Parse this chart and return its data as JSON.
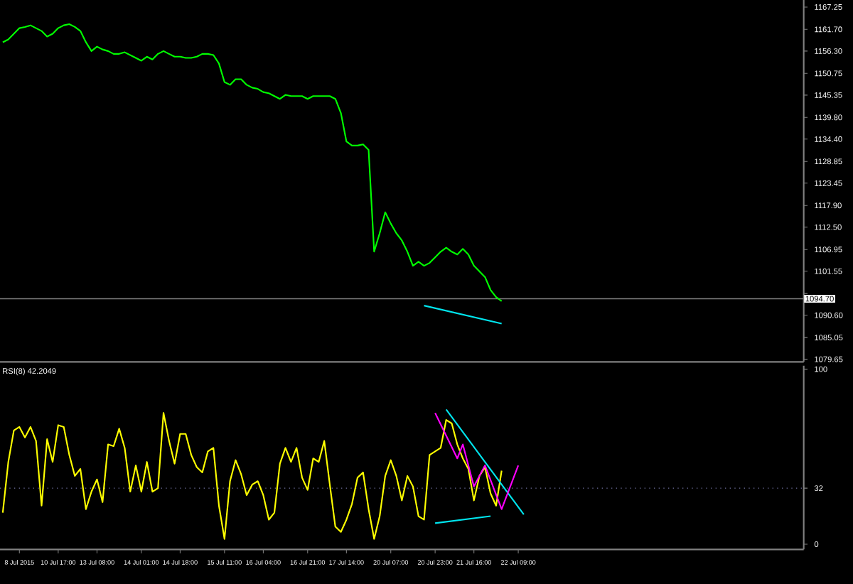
{
  "chart_data": [
    {
      "type": "line",
      "categories": [
        null,
        null,
        null,
        null,
        null,
        null,
        null,
        null,
        null,
        null,
        null,
        null,
        null,
        null,
        null,
        null,
        null,
        null,
        null,
        null,
        null,
        null,
        null,
        null,
        null,
        null,
        null,
        null,
        null,
        null,
        null,
        null,
        null,
        null,
        null,
        null,
        null,
        null,
        null,
        null,
        null,
        null,
        null,
        null,
        null,
        null,
        null,
        null,
        null,
        null,
        null,
        null,
        null,
        null,
        null,
        null,
        null,
        null,
        null,
        null,
        null,
        null,
        null,
        null,
        null,
        null,
        null,
        null,
        null,
        null,
        null,
        null,
        null,
        null,
        null,
        null,
        null,
        null,
        null,
        null,
        null,
        null,
        null,
        null,
        null,
        null,
        null,
        null,
        null,
        null,
        null,
        null,
        null,
        null,
        null,
        null,
        null,
        null,
        null,
        null,
        null,
        null,
        null,
        null,
        null,
        null,
        null,
        null,
        null,
        null,
        null,
        null,
        null,
        null,
        null,
        null,
        null,
        null,
        null,
        null,
        null,
        null,
        null,
        null,
        null,
        null,
        null,
        null,
        null,
        null,
        null,
        null,
        null,
        null,
        null,
        null,
        null,
        null,
        null,
        null,
        null,
        null,
        null,
        null,
        null
      ],
      "series": [
        {
          "color": "#00ff00",
          "values": [
            1158.5,
            1159.2,
            1160.6,
            1162.0,
            1162.3,
            1162.7,
            1162.0,
            1161.3,
            1159.9,
            1160.6,
            1162.0,
            1162.7,
            1163.0,
            1162.3,
            1161.3,
            1158.5,
            1156.3,
            1157.4,
            1156.7,
            1156.3,
            1155.6,
            1155.6,
            1156.0,
            1155.3,
            1154.6,
            1153.9,
            1154.9,
            1154.2,
            1155.6,
            1156.3,
            1155.6,
            1154.9,
            1154.9,
            1154.6,
            1154.6,
            1154.9,
            1155.6,
            1155.6,
            1155.3,
            1153.2,
            1148.6,
            1147.9,
            1149.3,
            1149.3,
            1147.9,
            1147.2,
            1146.9,
            1146.1,
            1145.8,
            1145.1,
            1144.4,
            1145.4,
            1145.1,
            1145.1,
            1145.1,
            1144.4,
            1145.1,
            1145.1,
            1145.1,
            1145.1,
            1144.4,
            1140.9,
            1133.8,
            1132.8,
            1132.8,
            1133.1,
            1131.7,
            1106.4,
            1111.0,
            1116.2,
            1113.4,
            1111.0,
            1109.2,
            1106.4,
            1102.9,
            1103.9,
            1102.9,
            1103.6,
            1105.0,
            1106.4,
            1107.4,
            1106.4,
            1105.7,
            1107.1,
            1105.7,
            1102.9,
            1101.5,
            1100.1,
            1096.9,
            1095.1,
            1094.1,
            null,
            null,
            null,
            null,
            null,
            null,
            null,
            null,
            null,
            null,
            null,
            null,
            null,
            null,
            null,
            null,
            null,
            null,
            null,
            null,
            null,
            null,
            null,
            null,
            null,
            null,
            null,
            null,
            null,
            null,
            null,
            null,
            null,
            null,
            null,
            null,
            null,
            null,
            null,
            null,
            null,
            null,
            null,
            null,
            null,
            null,
            null,
            null,
            null,
            null,
            null,
            null,
            null,
            null
          ]
        },
        {
          "color": "#00e5ee",
          "values": [
            null,
            null,
            null,
            null,
            null,
            null,
            null,
            null,
            null,
            null,
            null,
            null,
            null,
            null,
            null,
            null,
            null,
            null,
            null,
            null,
            null,
            null,
            null,
            null,
            null,
            null,
            null,
            null,
            null,
            null,
            null,
            null,
            null,
            null,
            null,
            null,
            null,
            null,
            null,
            null,
            null,
            null,
            null,
            null,
            null,
            null,
            null,
            null,
            null,
            null,
            null,
            null,
            null,
            null,
            null,
            null,
            null,
            null,
            null,
            null,
            null,
            null,
            null,
            null,
            null,
            null,
            null,
            null,
            null,
            null,
            null,
            null,
            null,
            null,
            null,
            null,
            1093.0,
            null,
            null,
            null,
            null,
            null,
            null,
            null,
            null,
            null,
            null,
            null,
            null,
            null,
            1088.5,
            null,
            null,
            null,
            null,
            null,
            null,
            null,
            null,
            null,
            null,
            null,
            null,
            null,
            null,
            null,
            null,
            null,
            null,
            null,
            null,
            null,
            null,
            null,
            null,
            null,
            null,
            null,
            null,
            null,
            null,
            null,
            null,
            null,
            null,
            null,
            null,
            null,
            null,
            null,
            null,
            null,
            null,
            null,
            null,
            null,
            null,
            null,
            null,
            null,
            null,
            null,
            null,
            null,
            null
          ]
        }
      ],
      "ylim": [
        1079,
        1169
      ],
      "yticks": [
        1167.25,
        {
          "value": 1161.7,
          "label": "1161.70"
        },
        {
          "value": 1156.3,
          "label": "1156.30"
        },
        1150.75,
        1145.35,
        {
          "value": 1139.8,
          "label": "1139.80"
        },
        {
          "value": 1134.4,
          "label": "1134.40"
        },
        1128.85,
        1123.45,
        {
          "value": 1117.9,
          "label": "1117.90"
        },
        {
          "value": 1112.5,
          "label": "1112.50"
        },
        1106.95,
        1101.55,
        {
          "value": 1096.0,
          "label": null
        },
        {
          "value": 1090.6,
          "label": "1090.60"
        },
        1085.05,
        1079.65
      ],
      "tick_labels": "y",
      "ref_lines": [
        {
          "axis": "y",
          "value": 1094.7,
          "label": "1094.70",
          "color": "#808080"
        }
      ]
    },
    {
      "type": "line",
      "title": "RSI(8) 42.2049",
      "categories": [
        null,
        null,
        null,
        "8 Jul 2015",
        null,
        null,
        null,
        null,
        null,
        null,
        "10 Jul 17:00",
        null,
        null,
        null,
        null,
        null,
        null,
        "13 Jul 08:00",
        null,
        null,
        null,
        null,
        null,
        null,
        null,
        "14 Jul 01:00",
        null,
        null,
        null,
        null,
        null,
        null,
        "14 Jul 18:00",
        null,
        null,
        null,
        null,
        null,
        null,
        null,
        "15 Jul 11:00",
        null,
        null,
        null,
        null,
        null,
        null,
        "16 Jul 04:00",
        null,
        null,
        null,
        null,
        null,
        null,
        null,
        "16 Jul 21:00",
        null,
        null,
        null,
        null,
        null,
        null,
        "17 Jul 14:00",
        null,
        null,
        null,
        null,
        null,
        null,
        null,
        "20 Jul 07:00",
        null,
        null,
        null,
        null,
        null,
        null,
        null,
        "20 Jul 23:00",
        null,
        null,
        null,
        null,
        null,
        null,
        "21 Jul 16:00",
        null,
        null,
        null,
        null,
        null,
        null,
        null,
        "22 Jul 09:00",
        null,
        null,
        null,
        null,
        null,
        null,
        null,
        null,
        null,
        null,
        null,
        null,
        null,
        null,
        null,
        null,
        null,
        null,
        null,
        null,
        null,
        null,
        null,
        null,
        null,
        null,
        null,
        null,
        null,
        null,
        null,
        null,
        null,
        null,
        null,
        null,
        null,
        null,
        null,
        null,
        null,
        null,
        null,
        null,
        null,
        null,
        null,
        null,
        null,
        null,
        null
      ],
      "series": [
        {
          "color": "#ffff00",
          "values": [
            18,
            47,
            65,
            67,
            61,
            67,
            59,
            22,
            60,
            47,
            68,
            67,
            51,
            39,
            43,
            20,
            30,
            37,
            24,
            57,
            56,
            66,
            55,
            30,
            45,
            30,
            47,
            30,
            32,
            75,
            59,
            46,
            63,
            63,
            51,
            44,
            41,
            53,
            55,
            22,
            3,
            36,
            48,
            40,
            28,
            34,
            36,
            28,
            14,
            18,
            46,
            55,
            47,
            55,
            38,
            31,
            49,
            47,
            59,
            34,
            10,
            7,
            14,
            23,
            38,
            41,
            20,
            3,
            16,
            39,
            48,
            39,
            25,
            39,
            33,
            16,
            14,
            51,
            53,
            55,
            71,
            69,
            57,
            49,
            43,
            25,
            39,
            44,
            29,
            22,
            42,
            null,
            null,
            null,
            null,
            null,
            null,
            null,
            null,
            null,
            null,
            null,
            null,
            null,
            null,
            null,
            null,
            null,
            null,
            null,
            null,
            null,
            null,
            null,
            null,
            null,
            null,
            null,
            null,
            null,
            null,
            null,
            null,
            null,
            null,
            null,
            null,
            null,
            null,
            null,
            null,
            null,
            null,
            null,
            null,
            null,
            null,
            null,
            null,
            null,
            null,
            null,
            null,
            null,
            null
          ]
        },
        {
          "color": "#00e5ee",
          "values": [
            null,
            null,
            null,
            null,
            null,
            null,
            null,
            null,
            null,
            null,
            null,
            null,
            null,
            null,
            null,
            null,
            null,
            null,
            null,
            null,
            null,
            null,
            null,
            null,
            null,
            null,
            null,
            null,
            null,
            null,
            null,
            null,
            null,
            null,
            null,
            null,
            null,
            null,
            null,
            null,
            null,
            null,
            null,
            null,
            null,
            null,
            null,
            null,
            null,
            null,
            null,
            null,
            null,
            null,
            null,
            null,
            null,
            null,
            null,
            null,
            null,
            null,
            null,
            null,
            null,
            null,
            null,
            null,
            null,
            null,
            null,
            null,
            null,
            null,
            null,
            null,
            null,
            null,
            null,
            null,
            77,
            null,
            null,
            null,
            null,
            null,
            null,
            null,
            null,
            null,
            null,
            null,
            null,
            null,
            17,
            null,
            null,
            null,
            null,
            null,
            null,
            null,
            null,
            null,
            null,
            null,
            null,
            null,
            null,
            null,
            null,
            null,
            null,
            null,
            null,
            null,
            null,
            null,
            null,
            null,
            null,
            null,
            null,
            null,
            null,
            null,
            null,
            null,
            null,
            null,
            null,
            null,
            null,
            null,
            null,
            null,
            null,
            null,
            null,
            null,
            null,
            null,
            null,
            null,
            null
          ]
        },
        {
          "color": "#00e5ee",
          "values": [
            null,
            null,
            null,
            null,
            null,
            null,
            null,
            null,
            null,
            null,
            null,
            null,
            null,
            null,
            null,
            null,
            null,
            null,
            null,
            null,
            null,
            null,
            null,
            null,
            null,
            null,
            null,
            null,
            null,
            null,
            null,
            null,
            null,
            null,
            null,
            null,
            null,
            null,
            null,
            null,
            null,
            null,
            null,
            null,
            null,
            null,
            null,
            null,
            null,
            null,
            null,
            null,
            null,
            null,
            null,
            null,
            null,
            null,
            null,
            null,
            null,
            null,
            null,
            null,
            null,
            null,
            null,
            null,
            null,
            null,
            null,
            null,
            null,
            null,
            null,
            null,
            null,
            null,
            12,
            null,
            null,
            null,
            null,
            null,
            null,
            null,
            null,
            null,
            16,
            null,
            null,
            null,
            null,
            null,
            null,
            null,
            null,
            null,
            null,
            null,
            null,
            null,
            null,
            null,
            null,
            null,
            null,
            null,
            null,
            null,
            null,
            null,
            null,
            null,
            null,
            null,
            null,
            null,
            null,
            null,
            null,
            null,
            null,
            null,
            null,
            null,
            null,
            null,
            null,
            null,
            null,
            null,
            null,
            null,
            null,
            null,
            null,
            null,
            null,
            null,
            null,
            null,
            null,
            null,
            null
          ]
        },
        {
          "color": "#ff00ff",
          "values": [
            null,
            null,
            null,
            null,
            null,
            null,
            null,
            null,
            null,
            null,
            null,
            null,
            null,
            null,
            null,
            null,
            null,
            null,
            null,
            null,
            null,
            null,
            null,
            null,
            null,
            null,
            null,
            null,
            null,
            null,
            null,
            null,
            null,
            null,
            null,
            null,
            null,
            null,
            null,
            null,
            null,
            null,
            null,
            null,
            null,
            null,
            null,
            null,
            null,
            null,
            null,
            null,
            null,
            null,
            null,
            null,
            null,
            null,
            null,
            null,
            null,
            null,
            null,
            null,
            null,
            null,
            null,
            null,
            null,
            null,
            null,
            null,
            null,
            null,
            null,
            null,
            null,
            null,
            75,
            null,
            null,
            null,
            49,
            57,
            null,
            33,
            null,
            45,
            null,
            null,
            20,
            null,
            null,
            45,
            null,
            null,
            null,
            null,
            null,
            null,
            null,
            null,
            null,
            null,
            null,
            null,
            null,
            null,
            null,
            null,
            null,
            null,
            null,
            null,
            null,
            null,
            null,
            null,
            null,
            null,
            null,
            null,
            null,
            null,
            null,
            null,
            null,
            null,
            null,
            null,
            null,
            null,
            null,
            null,
            null,
            null,
            null,
            null,
            null,
            null,
            null,
            null,
            null,
            null,
            null
          ]
        }
      ],
      "ylim": [
        -3,
        102
      ],
      "yticks": [
        0,
        32,
        100
      ],
      "ref_lines": [
        {
          "axis": "y",
          "value": 32,
          "label": null,
          "color": "#6f6f9f",
          "line_style": "dotted"
        }
      ]
    }
  ]
}
